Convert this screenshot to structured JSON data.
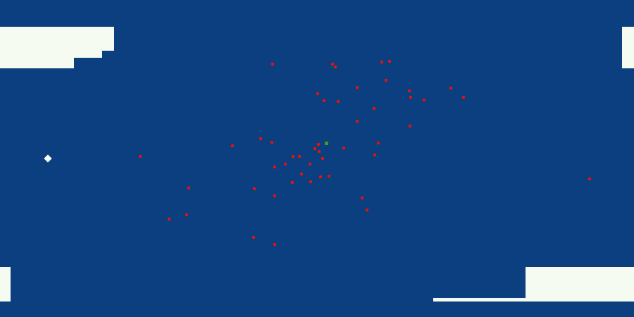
{
  "colors": {
    "background": "#0b3f7f",
    "wall": "#f5fbf1",
    "enemy": "#e8110c",
    "player": "#ffffff",
    "target": "#3aa01e"
  },
  "player": {
    "icon": "white-diamond"
  },
  "target": {
    "icon": "green-marker"
  },
  "enemies": {
    "icon": "red-dot",
    "count": 49
  }
}
